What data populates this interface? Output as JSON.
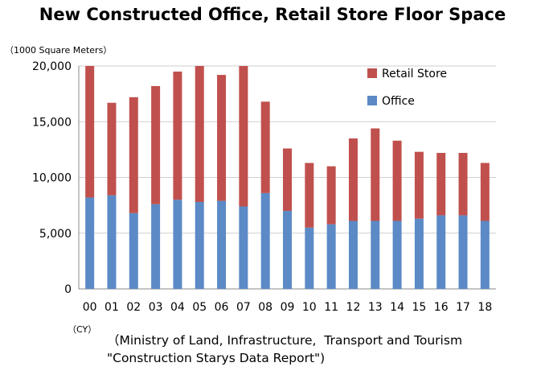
{
  "chart_data": {
    "type": "bar",
    "stacked": true,
    "title": "New Constructed Office, Retail Store Floor Space",
    "unit_label": "（1000 Square Meters）",
    "x_unit_label": "（CY）",
    "categories": [
      "00",
      "01",
      "02",
      "03",
      "04",
      "05",
      "06",
      "07",
      "08",
      "09",
      "10",
      "11",
      "12",
      "13",
      "14",
      "15",
      "16",
      "17",
      "18"
    ],
    "series": [
      {
        "name": "Office",
        "color": "#5b8ac6",
        "values": [
          8200,
          8400,
          6800,
          7600,
          8000,
          7800,
          7900,
          7400,
          8600,
          7000,
          5500,
          5800,
          6100,
          6100,
          6100,
          6300,
          6600,
          6600,
          6100
        ]
      },
      {
        "name": "Retail Store",
        "color": "#c0504d",
        "values": [
          11800,
          8300,
          10400,
          10600,
          11500,
          12200,
          11300,
          12600,
          8200,
          5600,
          5800,
          5200,
          7400,
          8300,
          7200,
          6000,
          5600,
          5600,
          5200
        ]
      }
    ],
    "legend_order": [
      "Retail Store",
      "Office"
    ],
    "legend_position": "top-right",
    "ylim": [
      0,
      20000
    ],
    "yticks": [
      "0",
      "5,000",
      "10,000",
      "15,000",
      "20,000"
    ],
    "grid": true
  },
  "source": {
    "line1": "（Ministry of Land, Infrastructure,  Transport and Tourism",
    "line2": "\"Construction Starys Data Report\")"
  }
}
